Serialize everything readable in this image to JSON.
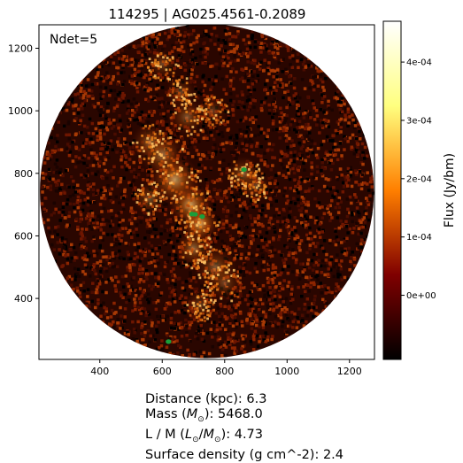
{
  "chart_data": {
    "type": "heatmap",
    "title": "114295 | AG025.4561-0.2089",
    "annotation": "Ndet=5",
    "xlabel": "",
    "ylabel": "",
    "xlim": [
      205,
      1280
    ],
    "ylim": [
      205,
      1275
    ],
    "x_ticks": [
      400,
      600,
      800,
      1000,
      1200
    ],
    "y_ticks": [
      400,
      600,
      800,
      1000,
      1200
    ],
    "colorbar": {
      "label": "Flux (Jy/bm)",
      "range": [
        -0.00011,
        0.00047
      ],
      "ticks": [
        {
          "value": 0.0,
          "label": "0e+00"
        },
        {
          "value": 0.0001,
          "label": "1e-04"
        },
        {
          "value": 0.0002,
          "label": "2e-04"
        },
        {
          "value": 0.0003,
          "label": "3e-04"
        },
        {
          "value": 0.0004,
          "label": "4e-04"
        }
      ],
      "colormap": "afmhot"
    },
    "detections": [
      {
        "x": 862,
        "y": 812
      },
      {
        "x": 695,
        "y": 670
      },
      {
        "x": 705,
        "y": 669
      },
      {
        "x": 728,
        "y": 662
      },
      {
        "x": 620,
        "y": 262
      }
    ],
    "marker_color": "#1a9e3a",
    "field": {
      "shape": "circle",
      "center": [
        743,
        743
      ],
      "radius": 535
    }
  },
  "info": {
    "distance_label": "Distance (kpc): ",
    "distance_value": "6.3",
    "mass_label": "Mass (",
    "mass_unit": "M",
    "mass_sub": "⊙",
    "mass_close": "): ",
    "mass_value": "5468.0",
    "lm_label": "L / M (",
    "lm_l": "L",
    "lm_sub1": "⊙",
    "lm_slash": "/",
    "lm_m": "M",
    "lm_sub2": "⊙",
    "lm_close": "): ",
    "lm_value": "4.73",
    "sd_label": "Surface density (g cm^-2): ",
    "sd_value": "2.4"
  }
}
